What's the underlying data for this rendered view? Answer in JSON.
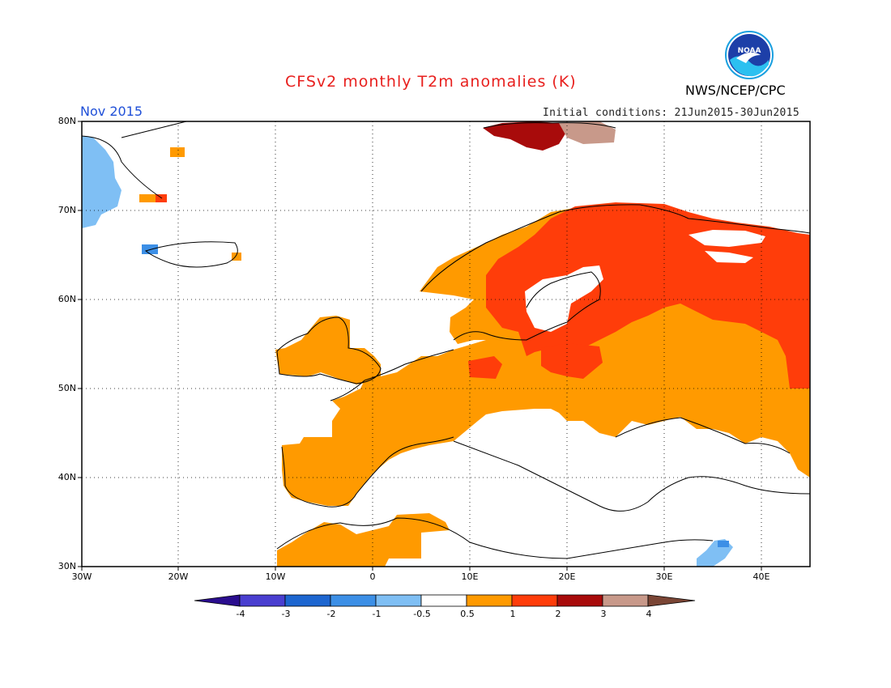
{
  "header": {
    "title": "CFSv2 monthly T2m anomalies (K)",
    "agency": "NWS/NCEP/CPC",
    "period": "Nov 2015",
    "initial_conditions": "Initial conditions: 21Jun2015-30Jun2015",
    "logo_text": "NOAA"
  },
  "map": {
    "lat_labels": [
      "80N",
      "70N",
      "60N",
      "50N",
      "40N",
      "30N"
    ],
    "lon_labels": [
      "30W",
      "20W",
      "10W",
      "0",
      "10E",
      "20E",
      "30E",
      "40E"
    ],
    "grid_style": "dotted"
  },
  "colorbar": {
    "labels": [
      "-4",
      "-3",
      "-2",
      "-1",
      "-0.5",
      "0.5",
      "1",
      "2",
      "3",
      "4"
    ],
    "colors": [
      "#2a0d8e",
      "#4a3fd0",
      "#1d66d0",
      "#3c8fe6",
      "#7fbff4",
      "#ffffff",
      "#ff9a00",
      "#ff3d0a",
      "#a80b0b",
      "#c8998a",
      "#7a4535"
    ]
  },
  "colors": {
    "warm1": "#ff9a00",
    "warm2": "#ff3d0a",
    "warm3": "#a80b0b",
    "warm4": "#c8998a",
    "cool1": "#7fbff4",
    "title": "#e8201e",
    "period": "#2050d8"
  }
}
